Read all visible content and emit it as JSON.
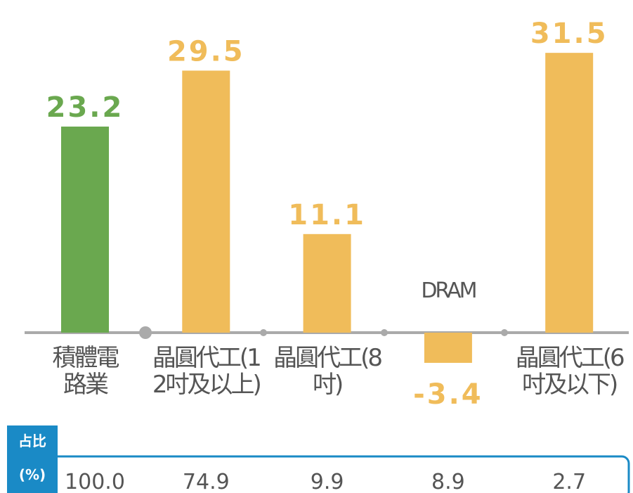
{
  "chart_data": {
    "type": "bar",
    "categories": [
      "積體電路業",
      "晶圓代工(12吋及以上)",
      "晶圓代工(8吋)",
      "DRAM",
      "晶圓代工(6吋及以下)"
    ],
    "values": [
      23.2,
      29.5,
      11.1,
      -3.4,
      31.5
    ],
    "colors": [
      "#6aa84f",
      "#f0bc5a",
      "#f0bc5a",
      "#f0bc5a",
      "#f0bc5a"
    ],
    "share_table": {
      "header": "占比",
      "unit": "(%)",
      "values": [
        "100.0",
        "74.9",
        "9.9",
        "8.9",
        "2.7"
      ]
    }
  }
}
